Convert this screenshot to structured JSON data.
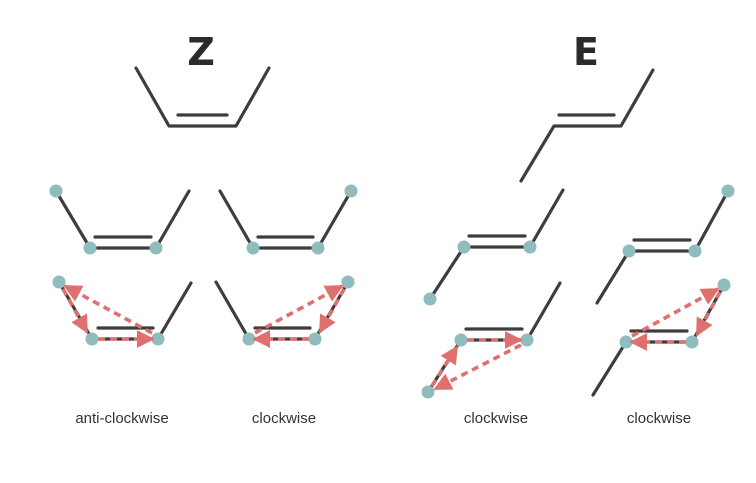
{
  "headings": {
    "z": "Z",
    "e": "E"
  },
  "captions": [
    "anti-clockwise",
    "clockwise",
    "clockwise",
    "clockwise"
  ],
  "colors": {
    "bond": "#3d3d3d",
    "atom": "#8fbcbc",
    "arrow": "#e07070",
    "text": "#333333"
  }
}
